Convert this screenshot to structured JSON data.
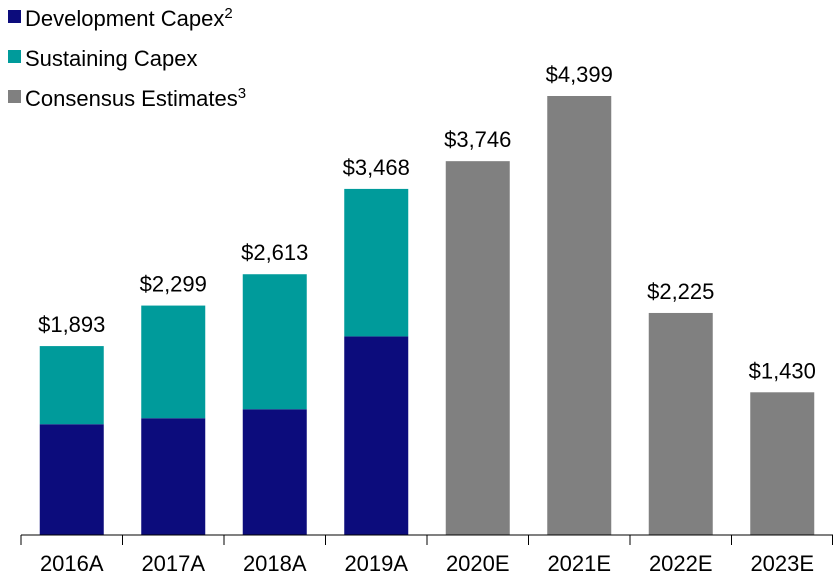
{
  "chart_data": {
    "type": "stacked_bar",
    "categories": [
      "2016A",
      "2017A",
      "2018A",
      "2019A",
      "2020E",
      "2021E",
      "2022E",
      "2023E"
    ],
    "series": [
      {
        "name": "Development Capex",
        "footnote": "2",
        "color": "#0c0c7c",
        "values": [
          1110,
          1170,
          1260,
          1990,
          null,
          null,
          null,
          null
        ]
      },
      {
        "name": "Sustaining Capex",
        "color": "#009b9b",
        "values": [
          783,
          1129,
          1353,
          1478,
          null,
          null,
          null,
          null
        ]
      },
      {
        "name": "Consensus Estimates",
        "footnote": "3",
        "color": "#808080",
        "values": [
          null,
          null,
          null,
          null,
          3746,
          4399,
          2225,
          1430
        ]
      }
    ],
    "totals": [
      1893,
      2299,
      2613,
      3468,
      3746,
      4399,
      2225,
      1430
    ],
    "total_labels": [
      "$1,893",
      "$2,299",
      "$2,613",
      "$3,468",
      "$3,746",
      "$4,399",
      "$2,225",
      "$1,430"
    ]
  }
}
